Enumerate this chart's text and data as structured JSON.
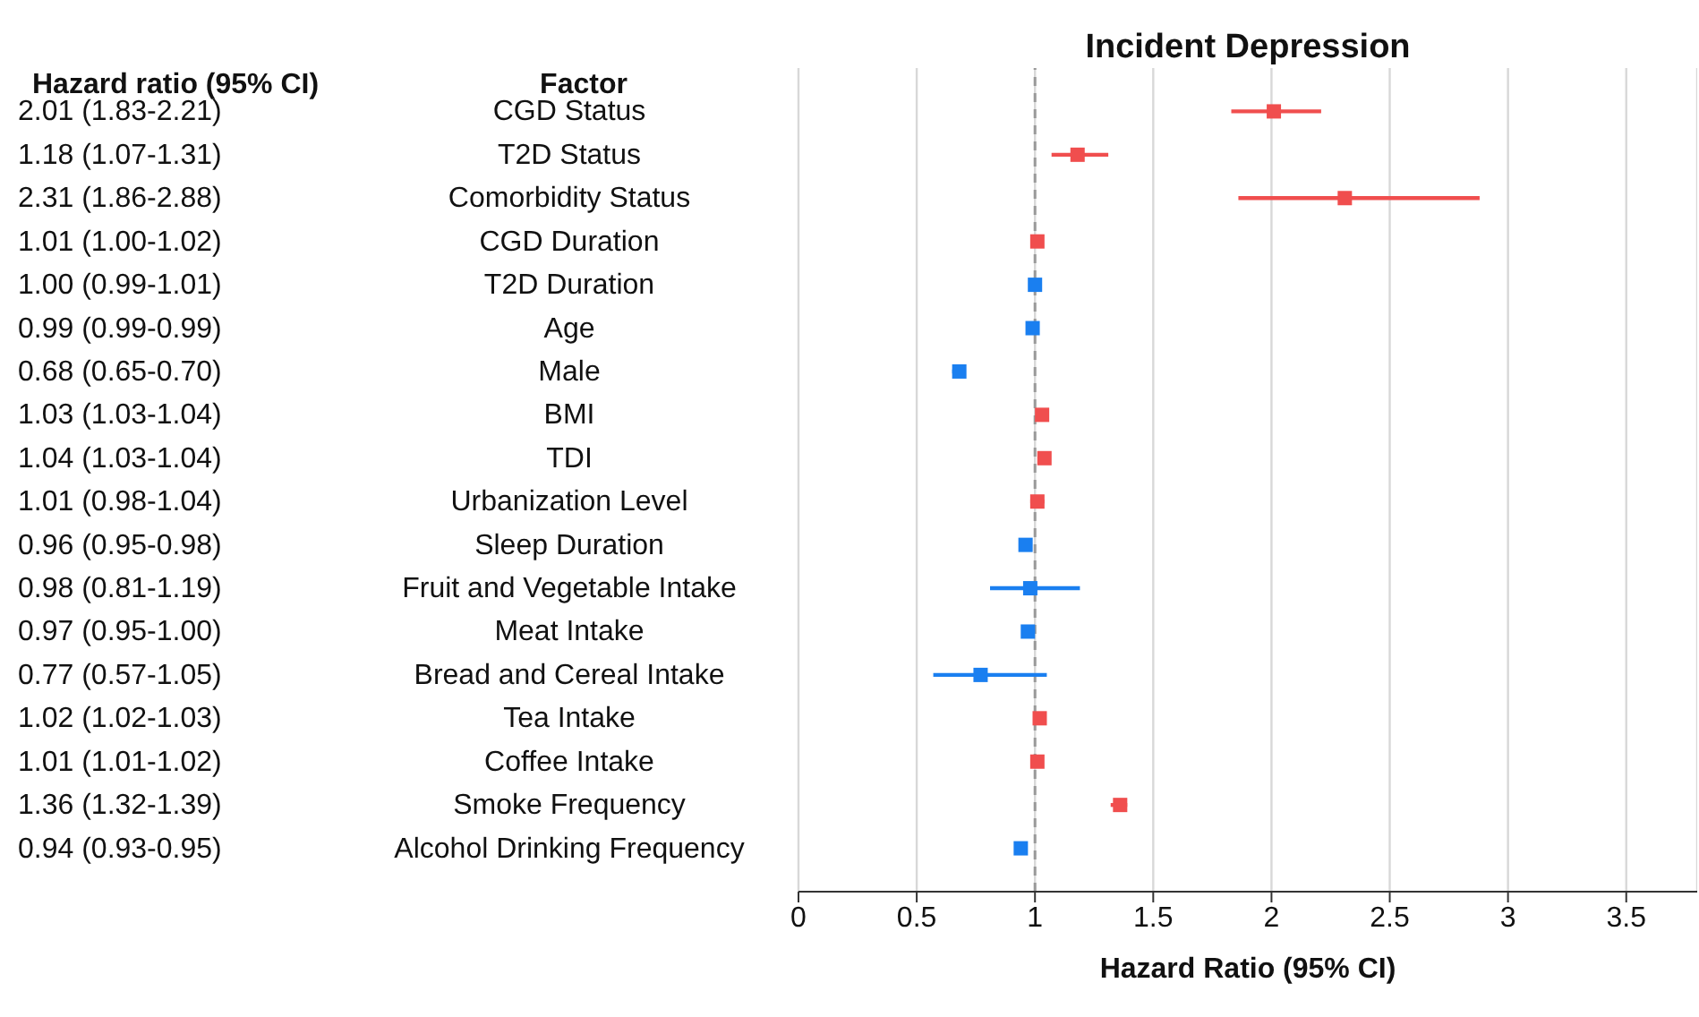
{
  "chart_data": {
    "type": "scatter",
    "orientation": "horizontal",
    "title": "Incident Depression",
    "xlabel": "Hazard Ratio (95% CI)",
    "annotations": [
      "Factor",
      "Hazard ratio (95% CI)"
    ],
    "categories": [
      "CGD Status",
      "T2D Status",
      "Comorbidity Status",
      "CGD Duration",
      "T2D Duration",
      "Age",
      "Male",
      "BMI",
      "TDI",
      "Urbanization Level",
      "Sleep Duration",
      "Fruit and Vegetable Intake",
      "Meat Intake",
      "Bread and Cereal Intake",
      "Tea Intake",
      "Coffee Intake",
      "Smoke Frequency",
      "Alcohol Drinking Frequency"
    ],
    "values": [
      2.01,
      1.18,
      2.31,
      1.01,
      1.0,
      0.99,
      0.68,
      1.03,
      1.04,
      1.01,
      0.96,
      0.98,
      0.97,
      0.77,
      1.02,
      1.01,
      1.36,
      0.94
    ],
    "errors": [
      [
        1.83,
        2.21
      ],
      [
        1.07,
        1.31
      ],
      [
        1.86,
        2.88
      ],
      [
        1.0,
        1.02
      ],
      [
        0.99,
        1.01
      ],
      [
        0.99,
        0.99
      ],
      [
        0.65,
        0.7
      ],
      [
        1.03,
        1.04
      ],
      [
        1.03,
        1.04
      ],
      [
        0.98,
        1.04
      ],
      [
        0.95,
        0.98
      ],
      [
        0.81,
        1.19
      ],
      [
        0.95,
        1.0
      ],
      [
        0.57,
        1.05
      ],
      [
        1.02,
        1.03
      ],
      [
        1.01,
        1.02
      ],
      [
        1.32,
        1.39
      ],
      [
        0.93,
        0.95
      ]
    ],
    "value_labels": [
      "2.01 (1.83-2.21)",
      "1.18 (1.07-1.31)",
      "2.31 (1.86-2.88)",
      "1.01 (1.00-1.02)",
      "1.00 (0.99-1.01)",
      "0.99 (0.99-0.99)",
      "0.68 (0.65-0.70)",
      "1.03 (1.03-1.04)",
      "1.04 (1.03-1.04)",
      "1.01 (0.98-1.04)",
      "0.96 (0.95-0.98)",
      "0.98 (0.81-1.19)",
      "0.97 (0.95-1.00)",
      "0.77 (0.57-1.05)",
      "1.02 (1.02-1.03)",
      "1.01 (1.01-1.02)",
      "1.36 (1.32-1.39)",
      "0.94 (0.93-0.95)"
    ],
    "colors": [
      "#f04e4e",
      "#f04e4e",
      "#f04e4e",
      "#f04e4e",
      "#1a7ff0",
      "#1a7ff0",
      "#1a7ff0",
      "#f04e4e",
      "#f04e4e",
      "#f04e4e",
      "#1a7ff0",
      "#1a7ff0",
      "#1a7ff0",
      "#1a7ff0",
      "#f04e4e",
      "#f04e4e",
      "#f04e4e",
      "#1a7ff0"
    ],
    "xlim": [
      0,
      3.8
    ],
    "xticks": [
      0,
      0.5,
      1,
      1.5,
      2,
      2.5,
      3,
      3.5
    ],
    "ref_lines": [
      {
        "axis": "x",
        "value": 1,
        "color": "#999999",
        "line_style": "dashed"
      }
    ],
    "grid": "x",
    "marker": "square",
    "legend": false
  }
}
